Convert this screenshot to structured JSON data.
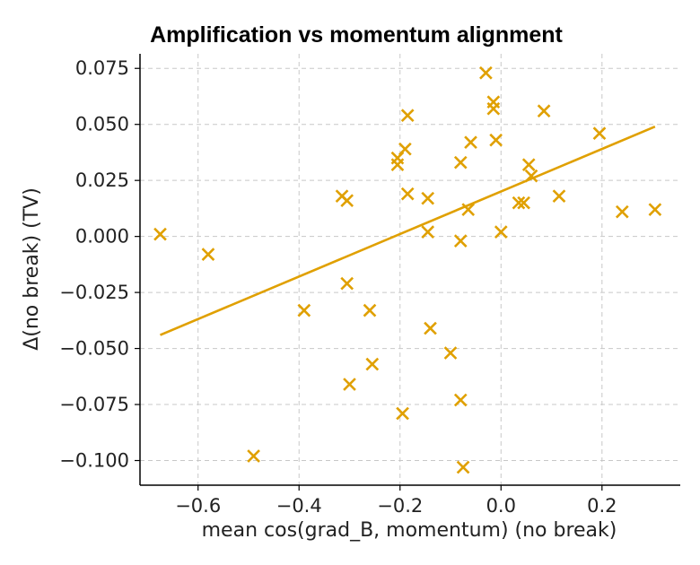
{
  "chart_data": {
    "type": "scatter",
    "title": "Amplification vs momentum alignment",
    "xlabel": "mean cos(grad_B, momentum)  (no break)",
    "ylabel": "Δ(no break)  (TV)",
    "xlim": [
      -0.715,
      0.355
    ],
    "ylim": [
      -0.111,
      0.0815
    ],
    "xticks": [
      -0.6,
      -0.4,
      -0.2,
      0.0,
      0.2
    ],
    "xtick_labels": [
      "−0.6",
      "−0.4",
      "−0.2",
      "0.0",
      "0.2"
    ],
    "yticks": [
      0.075,
      0.05,
      0.025,
      0.0,
      -0.025,
      -0.05,
      -0.075,
      -0.1
    ],
    "ytick_labels": [
      "0.075",
      "0.050",
      "0.025",
      "0.000",
      "−0.025",
      "−0.050",
      "−0.075",
      "−0.100"
    ],
    "grid": true,
    "marker": "x",
    "color": "#E0A000",
    "points": [
      {
        "x": -0.675,
        "y": 0.001
      },
      {
        "x": -0.58,
        "y": -0.008
      },
      {
        "x": -0.49,
        "y": -0.098
      },
      {
        "x": -0.39,
        "y": -0.033
      },
      {
        "x": -0.315,
        "y": 0.018
      },
      {
        "x": -0.305,
        "y": 0.016
      },
      {
        "x": -0.305,
        "y": -0.021
      },
      {
        "x": -0.3,
        "y": -0.066
      },
      {
        "x": -0.26,
        "y": -0.033
      },
      {
        "x": -0.255,
        "y": -0.057
      },
      {
        "x": -0.205,
        "y": 0.035
      },
      {
        "x": -0.205,
        "y": 0.032
      },
      {
        "x": -0.195,
        "y": -0.079
      },
      {
        "x": -0.19,
        "y": 0.039
      },
      {
        "x": -0.185,
        "y": 0.054
      },
      {
        "x": -0.185,
        "y": 0.019
      },
      {
        "x": -0.145,
        "y": 0.017
      },
      {
        "x": -0.145,
        "y": 0.002
      },
      {
        "x": -0.14,
        "y": -0.041
      },
      {
        "x": -0.1,
        "y": -0.052
      },
      {
        "x": -0.08,
        "y": 0.033
      },
      {
        "x": -0.08,
        "y": -0.002
      },
      {
        "x": -0.08,
        "y": -0.073
      },
      {
        "x": -0.075,
        "y": -0.103
      },
      {
        "x": -0.065,
        "y": 0.012
      },
      {
        "x": -0.06,
        "y": 0.042
      },
      {
        "x": -0.03,
        "y": 0.073
      },
      {
        "x": -0.015,
        "y": 0.06
      },
      {
        "x": -0.015,
        "y": 0.057
      },
      {
        "x": -0.01,
        "y": 0.043
      },
      {
        "x": 0.0,
        "y": 0.002
      },
      {
        "x": 0.035,
        "y": 0.015
      },
      {
        "x": 0.045,
        "y": 0.015
      },
      {
        "x": 0.055,
        "y": 0.032
      },
      {
        "x": 0.06,
        "y": 0.027
      },
      {
        "x": 0.085,
        "y": 0.056
      },
      {
        "x": 0.115,
        "y": 0.018
      },
      {
        "x": 0.195,
        "y": 0.046
      },
      {
        "x": 0.24,
        "y": 0.011
      },
      {
        "x": 0.305,
        "y": 0.012
      }
    ],
    "trendline": {
      "x": [
        -0.675,
        0.305
      ],
      "y": [
        -0.044,
        0.049
      ]
    }
  }
}
